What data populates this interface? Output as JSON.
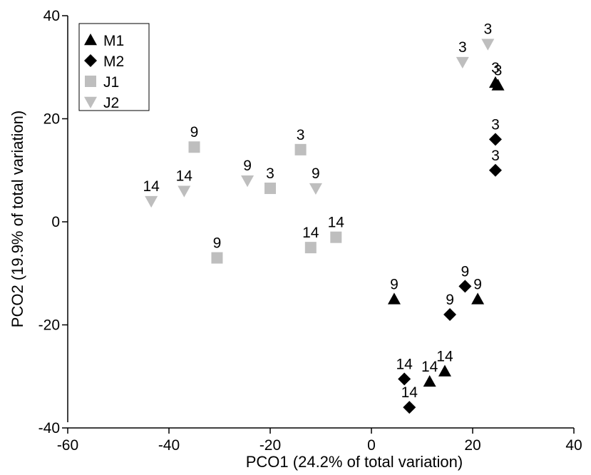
{
  "chart_data": {
    "type": "scatter",
    "xlabel": "PCO1 (24.2% of total variation)",
    "ylabel": "PCO2 (19.9% of total variation)",
    "xlim": [
      -60,
      40
    ],
    "ylim": [
      -40,
      40
    ],
    "xticks": [
      -60,
      -40,
      -20,
      0,
      20,
      40
    ],
    "yticks": [
      -40,
      -20,
      0,
      20,
      40
    ],
    "grid": false,
    "legend_position": "top-left",
    "series": [
      {
        "name": "M1",
        "marker": "triangle-up",
        "color": "#000000",
        "points": [
          {
            "x": 24.5,
            "y": 27,
            "label": "3"
          },
          {
            "x": 25,
            "y": 26.5,
            "label": "3"
          },
          {
            "x": 4.5,
            "y": -15,
            "label": "9"
          },
          {
            "x": 21,
            "y": -15,
            "label": "9"
          },
          {
            "x": 11.5,
            "y": -31,
            "label": "14"
          },
          {
            "x": 14.5,
            "y": -29,
            "label": "14"
          }
        ]
      },
      {
        "name": "M2",
        "marker": "diamond",
        "color": "#000000",
        "points": [
          {
            "x": 24.5,
            "y": 16,
            "label": "3"
          },
          {
            "x": 24.5,
            "y": 10,
            "label": "3"
          },
          {
            "x": 18.5,
            "y": -12.5,
            "label": "9"
          },
          {
            "x": 15.5,
            "y": -18,
            "label": "9"
          },
          {
            "x": 6.5,
            "y": -30.5,
            "label": "14"
          },
          {
            "x": 7.5,
            "y": -36,
            "label": "14"
          }
        ]
      },
      {
        "name": "J1",
        "marker": "square",
        "color": "#bebebe",
        "points": [
          {
            "x": -14,
            "y": 14,
            "label": "3"
          },
          {
            "x": -20,
            "y": 6.5,
            "label": "3"
          },
          {
            "x": -35,
            "y": 14.5,
            "label": "9"
          },
          {
            "x": -30.5,
            "y": -7,
            "label": "9"
          },
          {
            "x": -12,
            "y": -5,
            "label": "14"
          },
          {
            "x": -7,
            "y": -3,
            "label": "14"
          }
        ]
      },
      {
        "name": "J2",
        "marker": "triangle-down",
        "color": "#bebebe",
        "points": [
          {
            "x": 18,
            "y": 31,
            "label": "3"
          },
          {
            "x": 23,
            "y": 34.5,
            "label": "3"
          },
          {
            "x": -24.5,
            "y": 8,
            "label": "9"
          },
          {
            "x": -11,
            "y": 6.5,
            "label": "9"
          },
          {
            "x": -43.5,
            "y": 4,
            "label": "14"
          },
          {
            "x": -37,
            "y": 6,
            "label": "14"
          }
        ]
      }
    ]
  }
}
